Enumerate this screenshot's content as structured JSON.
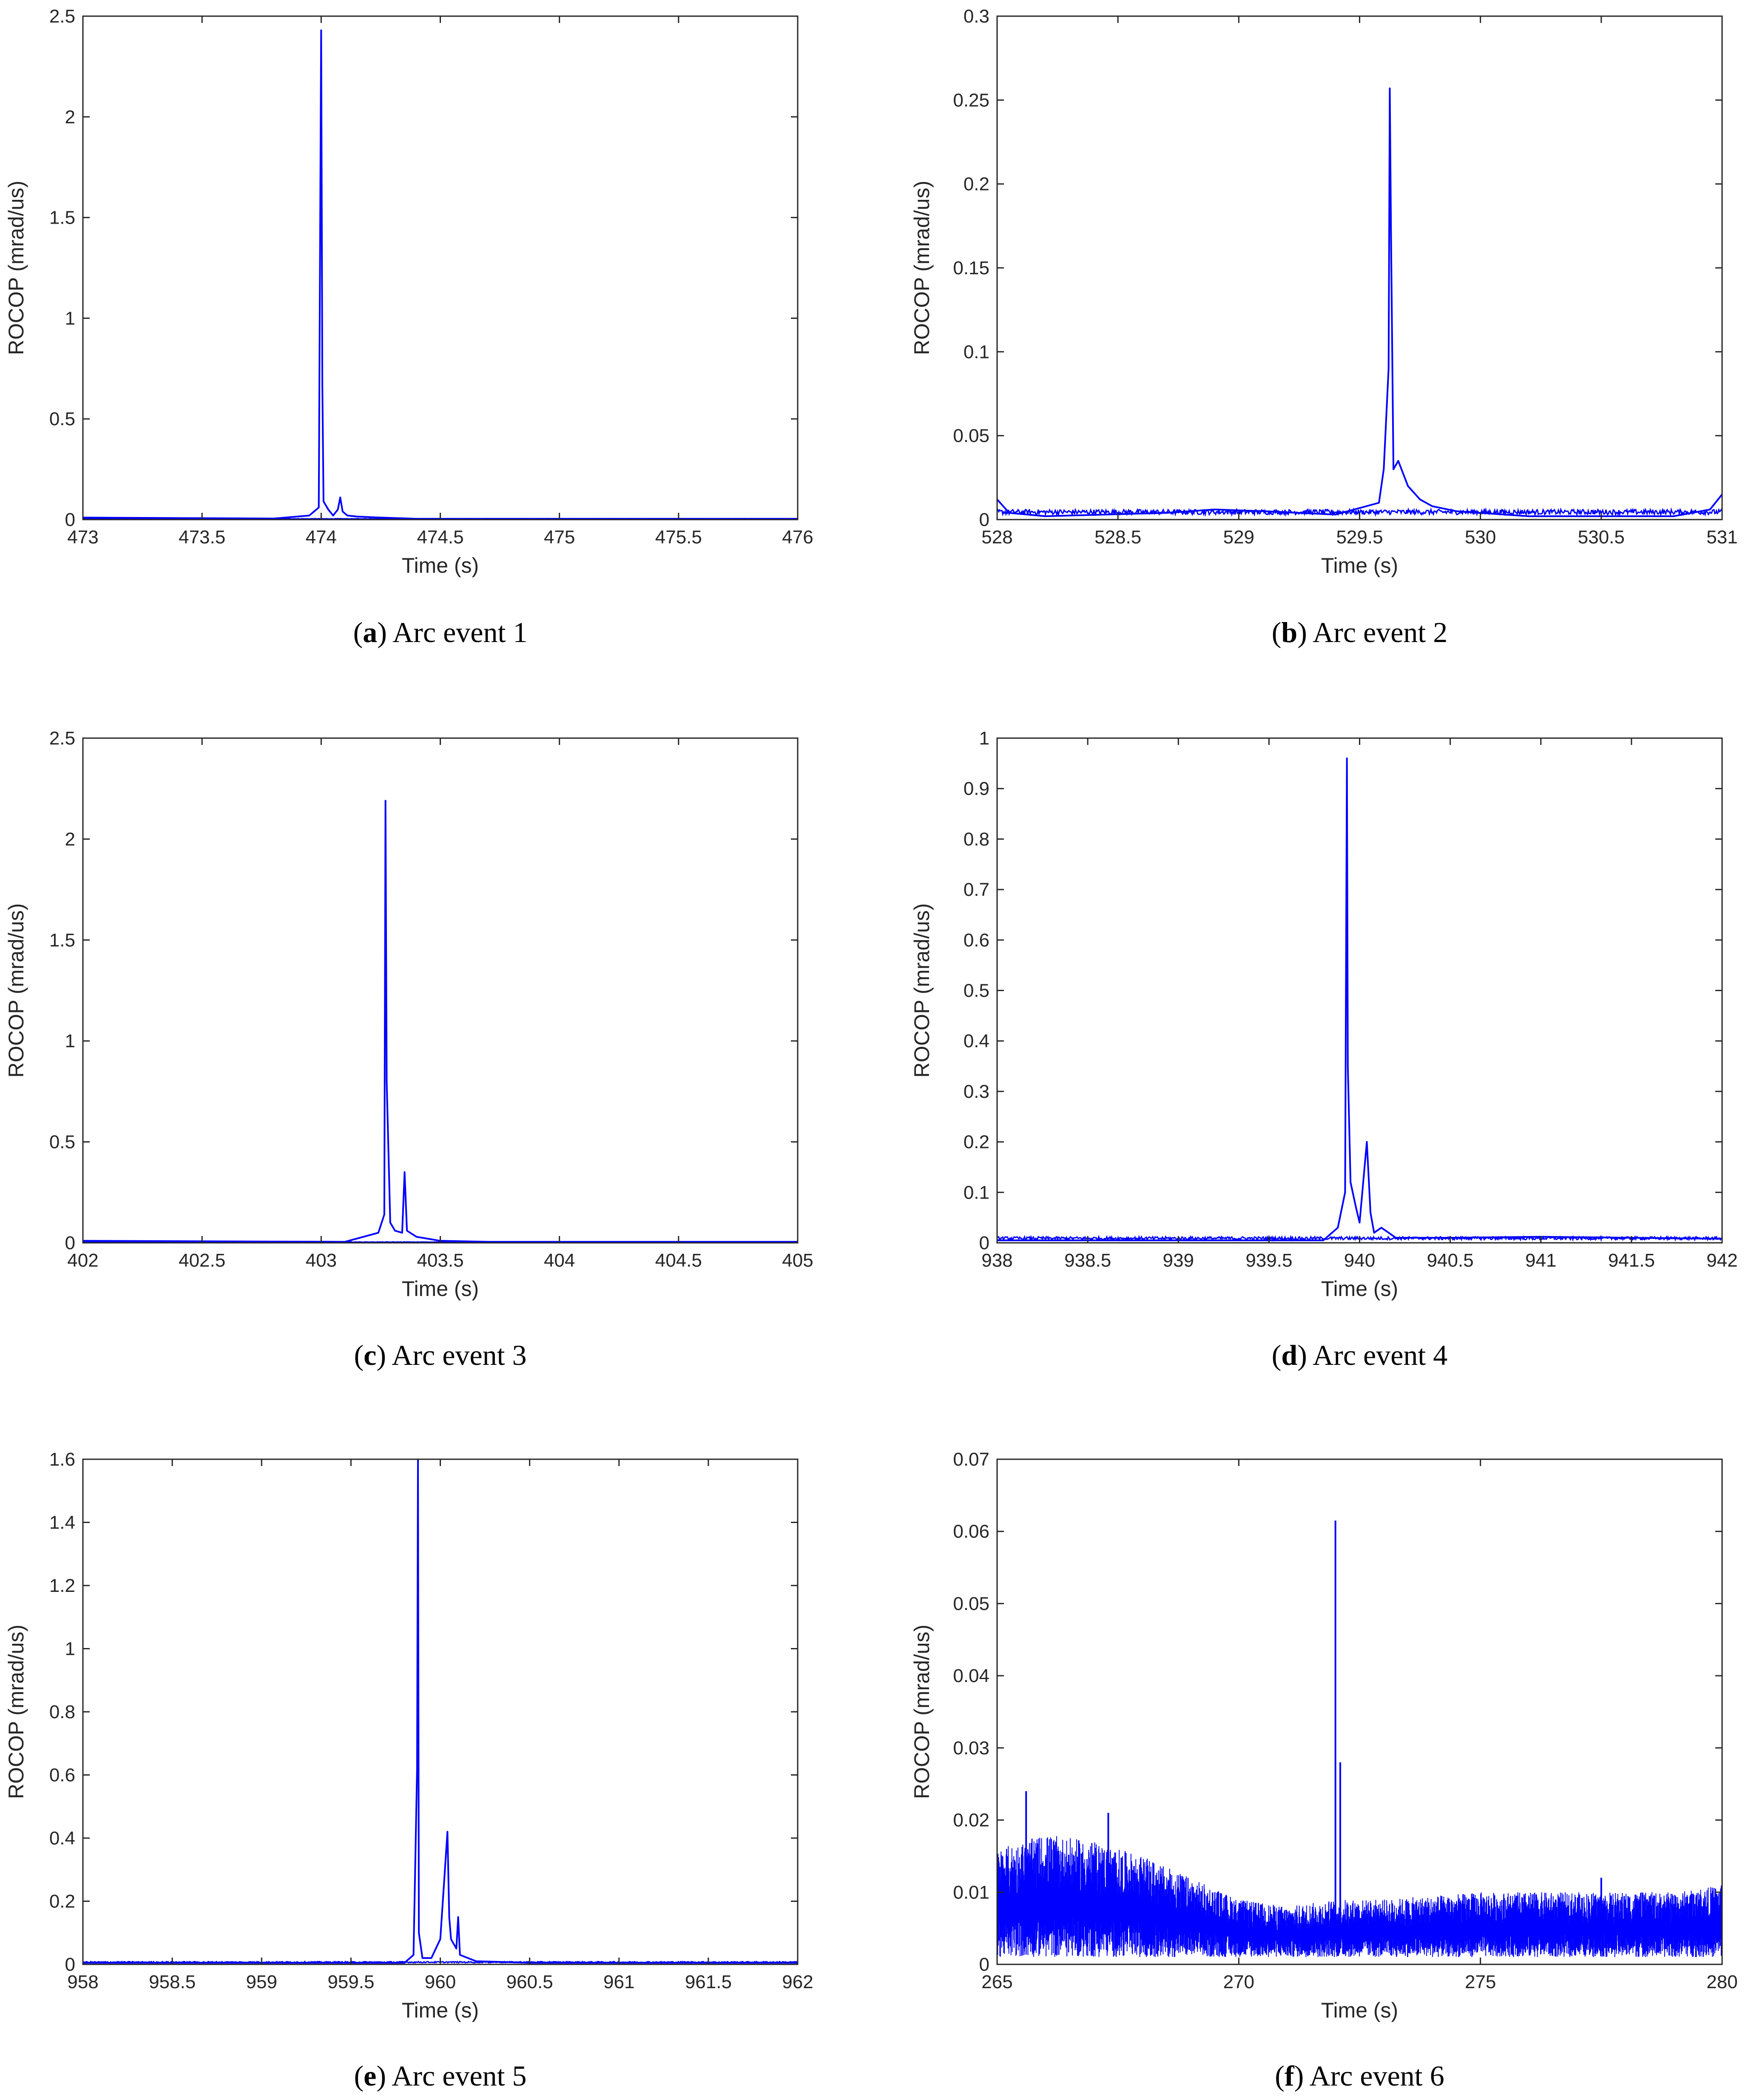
{
  "figure": {
    "panels": [
      {
        "caption": {
          "letter": "a",
          "text": "Arc event 1"
        },
        "chart_data": {
          "type": "line",
          "xlabel": "Time (s)",
          "ylabel": "ROCOP (mrad/us)",
          "xlim": [
            473,
            476
          ],
          "ylim": [
            0,
            2.5
          ],
          "xticks": [
            473,
            473.5,
            474,
            474.5,
            475,
            475.5,
            476
          ],
          "xtick_labels": [
            "473",
            "473.5",
            "474",
            "474.5",
            "475",
            "475.5",
            "476"
          ],
          "yticks": [
            0,
            0.5,
            1,
            1.5,
            2,
            2.5
          ],
          "ytick_labels": [
            "0",
            "0.5",
            "1",
            "1.5",
            "2",
            "2.5"
          ],
          "grid": false,
          "color": "#0000ff",
          "baseline": 0.003,
          "noise": 0.002,
          "x": [
            473.0,
            473.8,
            473.95,
            473.99,
            474.0,
            474.005,
            474.01,
            474.02,
            474.03,
            474.05,
            474.07,
            474.08,
            474.09,
            474.11,
            474.15,
            474.25,
            474.4,
            476.0
          ],
          "y": [
            0.01,
            0.005,
            0.02,
            0.06,
            2.43,
            0.67,
            0.09,
            0.07,
            0.05,
            0.02,
            0.05,
            0.11,
            0.04,
            0.02,
            0.015,
            0.01,
            0.004,
            0.004
          ]
        }
      },
      {
        "caption": {
          "letter": "b",
          "text": "Arc event 2"
        },
        "chart_data": {
          "type": "line",
          "xlabel": "Time (s)",
          "ylabel": "ROCOP (mrad/us)",
          "xlim": [
            528,
            531
          ],
          "ylim": [
            0,
            0.3
          ],
          "xticks": [
            528,
            528.5,
            529,
            529.5,
            530,
            530.5,
            531
          ],
          "xtick_labels": [
            "528",
            "528.5",
            "529",
            "529.5",
            "530",
            "530.5",
            "531"
          ],
          "yticks": [
            0,
            0.05,
            0.1,
            0.15,
            0.2,
            0.25,
            0.3
          ],
          "ytick_labels": [
            "0",
            "0.05",
            "0.1",
            "0.15",
            "0.2",
            "0.25",
            "0.3"
          ],
          "grid": false,
          "color": "#0000ff",
          "baseline": 0.003,
          "noise": 0.003,
          "x": [
            528.0,
            528.05,
            528.2,
            528.7,
            528.9,
            529.1,
            529.4,
            529.58,
            529.6,
            529.62,
            529.625,
            529.63,
            529.64,
            529.66,
            529.7,
            529.75,
            529.8,
            529.9,
            530.0,
            530.2,
            530.8,
            530.95,
            531.0
          ],
          "y": [
            0.012,
            0.004,
            0.002,
            0.004,
            0.006,
            0.005,
            0.003,
            0.01,
            0.03,
            0.09,
            0.257,
            0.17,
            0.03,
            0.035,
            0.02,
            0.012,
            0.008,
            0.005,
            0.004,
            0.002,
            0.002,
            0.006,
            0.015
          ]
        }
      },
      {
        "caption": {
          "letter": "c",
          "text": "Arc event 3"
        },
        "chart_data": {
          "type": "line",
          "xlabel": "Time (s)",
          "ylabel": "ROCOP (mrad/us)",
          "xlim": [
            402,
            405
          ],
          "ylim": [
            0,
            2.5
          ],
          "xticks": [
            402,
            402.5,
            403,
            403.5,
            404,
            404.5,
            405
          ],
          "xtick_labels": [
            "402",
            "402.5",
            "403",
            "403.5",
            "404",
            "404.5",
            "405"
          ],
          "yticks": [
            0,
            0.5,
            1,
            1.5,
            2,
            2.5
          ],
          "ytick_labels": [
            "0",
            "0.5",
            "1",
            "1.5",
            "2",
            "2.5"
          ],
          "grid": false,
          "color": "#0000ff",
          "baseline": 0.003,
          "noise": 0.002,
          "x": [
            402.0,
            403.1,
            403.24,
            403.265,
            403.27,
            403.275,
            403.29,
            403.31,
            403.34,
            403.35,
            403.36,
            403.4,
            403.5,
            403.7,
            405.0
          ],
          "y": [
            0.01,
            0.005,
            0.05,
            0.14,
            2.19,
            0.8,
            0.1,
            0.06,
            0.05,
            0.35,
            0.06,
            0.03,
            0.01,
            0.005,
            0.005
          ]
        }
      },
      {
        "caption": {
          "letter": "d",
          "text": "Arc event 4"
        },
        "chart_data": {
          "type": "line",
          "xlabel": "Time (s)",
          "ylabel": "ROCOP (mrad/us)",
          "xlim": [
            938,
            942
          ],
          "ylim": [
            0,
            1
          ],
          "xticks": [
            938,
            938.5,
            939,
            939.5,
            940,
            940.5,
            941,
            941.5,
            942
          ],
          "xtick_labels": [
            "938",
            "938.5",
            "939",
            "939.5",
            "940",
            "940.5",
            "941",
            "941.5",
            "942"
          ],
          "yticks": [
            0,
            0.1,
            0.2,
            0.3,
            0.4,
            0.5,
            0.6,
            0.7,
            0.8,
            0.9,
            1
          ],
          "ytick_labels": [
            "0",
            "0.1",
            "0.2",
            "0.3",
            "0.4",
            "0.5",
            "0.6",
            "0.7",
            "0.8",
            "0.9",
            "1"
          ],
          "grid": false,
          "color": "#0000ff",
          "baseline": 0.006,
          "noise": 0.006,
          "x": [
            938.0,
            939.8,
            939.88,
            939.92,
            939.93,
            939.935,
            939.95,
            939.98,
            940.0,
            940.04,
            940.06,
            940.08,
            940.12,
            940.2,
            940.5,
            941.0,
            941.5,
            942.0
          ],
          "y": [
            0.005,
            0.005,
            0.03,
            0.1,
            0.96,
            0.35,
            0.12,
            0.07,
            0.04,
            0.2,
            0.06,
            0.02,
            0.03,
            0.01,
            0.01,
            0.012,
            0.01,
            0.008
          ]
        }
      },
      {
        "caption": {
          "letter": "e",
          "text": "Arc event 5"
        },
        "chart_data": {
          "type": "line",
          "xlabel": "Time (s)",
          "ylabel": "ROCOP (mrad/us)",
          "xlim": [
            958,
            962
          ],
          "ylim": [
            0,
            1.6
          ],
          "xticks": [
            958,
            958.5,
            959,
            959.5,
            960,
            960.5,
            961,
            961.5,
            962
          ],
          "xtick_labels": [
            "958",
            "958.5",
            "959",
            "959.5",
            "960",
            "960.5",
            "961",
            "961.5",
            "962"
          ],
          "yticks": [
            0,
            0.2,
            0.4,
            0.6,
            0.8,
            1,
            1.2,
            1.4,
            1.6
          ],
          "ytick_labels": [
            "0",
            "0.2",
            "0.4",
            "0.6",
            "0.8",
            "1",
            "1.2",
            "1.4",
            "1.6"
          ],
          "grid": false,
          "color": "#0000ff",
          "baseline": 0.005,
          "noise": 0.004,
          "x": [
            958.0,
            959.8,
            959.85,
            959.87,
            959.875,
            959.88,
            959.9,
            959.95,
            960.0,
            960.04,
            960.05,
            960.06,
            960.09,
            960.1,
            960.11,
            960.2,
            960.5,
            962.0
          ],
          "y": [
            0.005,
            0.005,
            0.03,
            0.62,
            1.6,
            0.1,
            0.02,
            0.02,
            0.08,
            0.42,
            0.15,
            0.08,
            0.05,
            0.15,
            0.03,
            0.01,
            0.005,
            0.005
          ]
        }
      },
      {
        "caption": {
          "letter": "f",
          "text": "Arc event 6"
        },
        "chart_data": {
          "type": "line",
          "xlabel": "Time (s)",
          "ylabel": "ROCOP (mrad/us)",
          "xlim": [
            265,
            280
          ],
          "ylim": [
            0,
            0.07
          ],
          "xticks": [
            265,
            270,
            275,
            280
          ],
          "xtick_labels": [
            "265",
            "270",
            "275",
            "280"
          ],
          "yticks": [
            0,
            0.01,
            0.02,
            0.03,
            0.04,
            0.05,
            0.06,
            0.07
          ],
          "ytick_labels": [
            "0",
            "0.01",
            "0.02",
            "0.03",
            "0.04",
            "0.05",
            "0.06",
            "0.07"
          ],
          "grid": false,
          "color": "#0000ff",
          "style": "dense-noise",
          "envelope_x": [
            265,
            266,
            267,
            268,
            269,
            270,
            271,
            272,
            273,
            275,
            277,
            279,
            280
          ],
          "envelope_top": [
            0.016,
            0.018,
            0.017,
            0.015,
            0.012,
            0.009,
            0.008,
            0.009,
            0.009,
            0.01,
            0.01,
            0.01,
            0.011
          ],
          "envelope_bottom": [
            0.001,
            0.001,
            0.001,
            0.001,
            0.001,
            0.001,
            0.001,
            0.001,
            0.001,
            0.001,
            0.001,
            0.001,
            0.001
          ],
          "spikes": [
            {
              "x": 265.6,
              "y": 0.024
            },
            {
              "x": 267.3,
              "y": 0.021
            },
            {
              "x": 272.0,
              "y": 0.0615
            },
            {
              "x": 272.1,
              "y": 0.028
            },
            {
              "x": 277.5,
              "y": 0.012
            }
          ]
        }
      }
    ]
  }
}
